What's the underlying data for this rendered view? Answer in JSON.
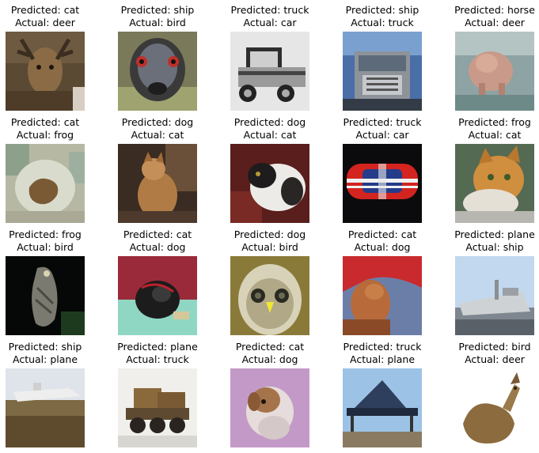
{
  "grid": {
    "items": [
      {
        "predicted": "Predicted: cat",
        "actual": "Actual: deer",
        "subject": "deer"
      },
      {
        "predicted": "Predicted: ship",
        "actual": "Actual: bird",
        "subject": "emu"
      },
      {
        "predicted": "Predicted: truck",
        "actual": "Actual: car",
        "subject": "vintage-car"
      },
      {
        "predicted": "Predicted: ship",
        "actual": "Actual: truck",
        "subject": "truck-front"
      },
      {
        "predicted": "Predicted: horse",
        "actual": "Actual: deer",
        "subject": "deer-snow"
      },
      {
        "predicted": "Predicted: cat",
        "actual": "Actual: frog",
        "subject": "frog"
      },
      {
        "predicted": "Predicted: dog",
        "actual": "Actual: cat",
        "subject": "cat-sitting"
      },
      {
        "predicted": "Predicted: dog",
        "actual": "Actual: cat",
        "subject": "cat-white"
      },
      {
        "predicted": "Predicted: truck",
        "actual": "Actual: car",
        "subject": "red-car-top"
      },
      {
        "predicted": "Predicted: frog",
        "actual": "Actual: cat",
        "subject": "cat-orange"
      },
      {
        "predicted": "Predicted: frog",
        "actual": "Actual: bird",
        "subject": "bird-dark"
      },
      {
        "predicted": "Predicted: cat",
        "actual": "Actual: dog",
        "subject": "dog-black"
      },
      {
        "predicted": "Predicted: dog",
        "actual": "Actual: bird",
        "subject": "owl"
      },
      {
        "predicted": "Predicted: cat",
        "actual": "Actual: dog",
        "subject": "dog-red"
      },
      {
        "predicted": "Predicted: plane",
        "actual": "Actual: ship",
        "subject": "boat"
      },
      {
        "predicted": "Predicted: ship",
        "actual": "Actual: plane",
        "subject": "plane-field"
      },
      {
        "predicted": "Predicted: plane",
        "actual": "Actual: truck",
        "subject": "dump-truck"
      },
      {
        "predicted": "Predicted: cat",
        "actual": "Actual: dog",
        "subject": "puppy"
      },
      {
        "predicted": "Predicted: truck",
        "actual": "Actual: plane",
        "subject": "plane-hangar"
      },
      {
        "predicted": "Predicted: bird",
        "actual": "Actual: deer",
        "subject": "deer-lying"
      }
    ]
  }
}
